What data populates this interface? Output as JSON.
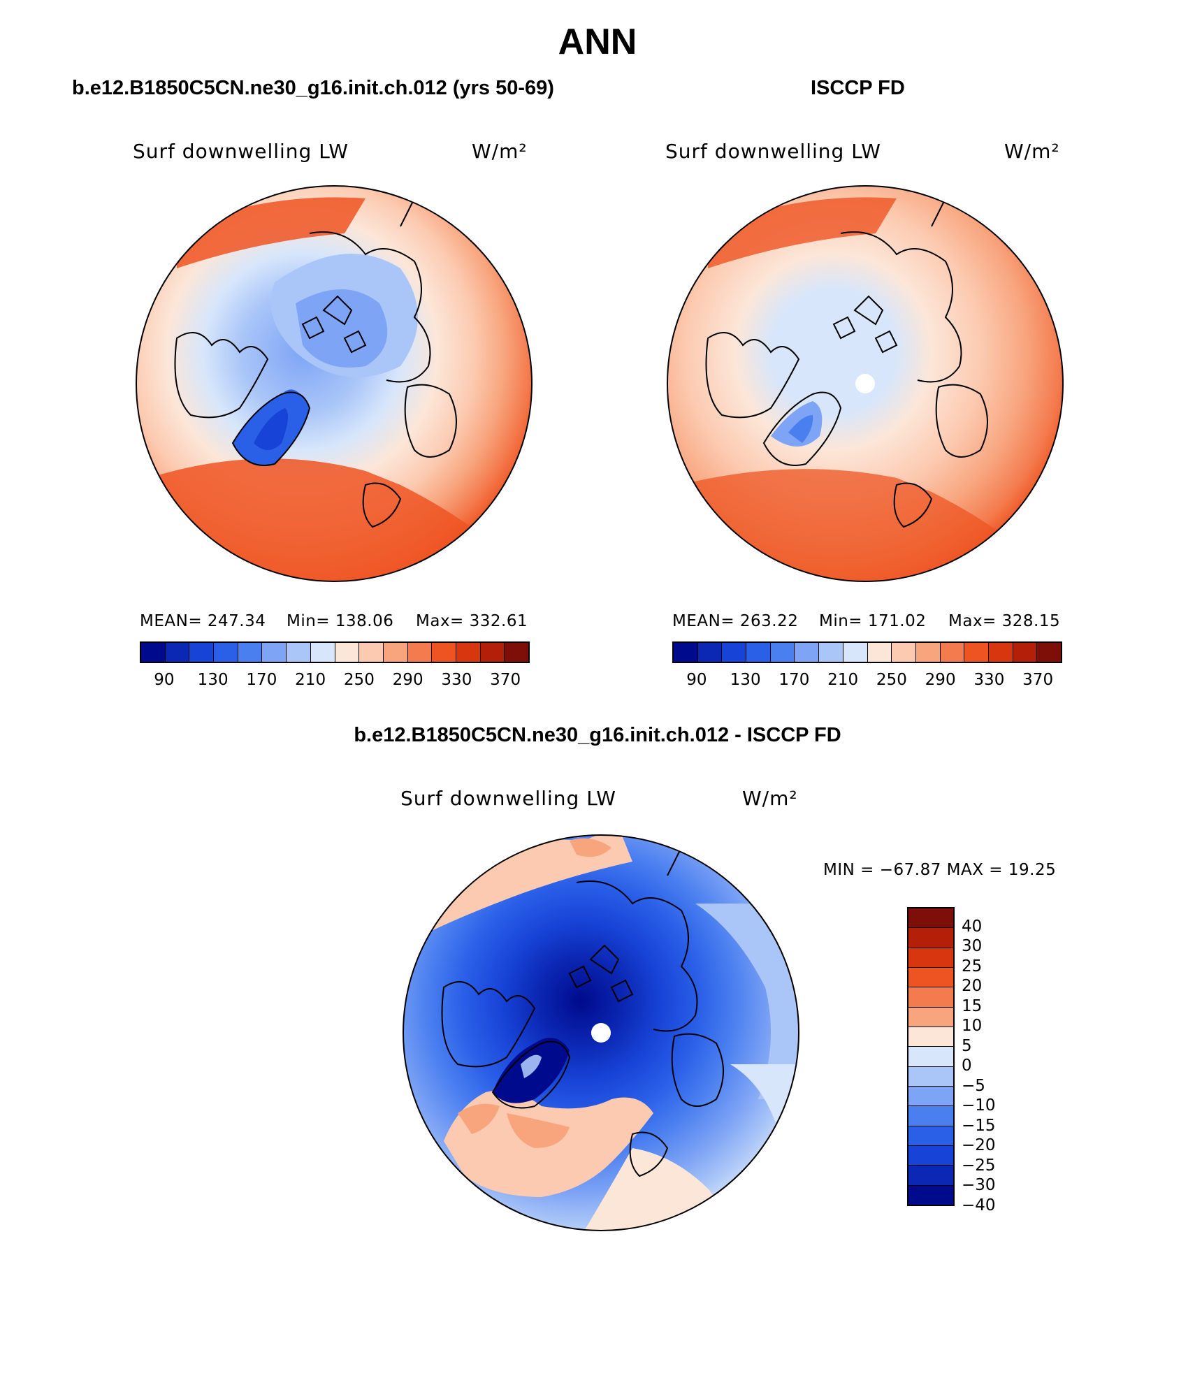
{
  "title": "ANN",
  "panels": [
    {
      "subtitle": "b.e12.B1850C5CN.ne30_g16.init.ch.012 (yrs 50-69)",
      "variable": "Surf downwelling LW",
      "units": "W/m²",
      "mean_label": "MEAN= 247.34",
      "min_label": "Min= 138.06",
      "max_label": "Max= 332.61"
    },
    {
      "subtitle": "ISCCP FD",
      "variable": "Surf downwelling LW",
      "units": "W/m²",
      "mean_label": "MEAN= 263.22",
      "min_label": "Min= 171.02",
      "max_label": "Max= 328.15"
    },
    {
      "subtitle": "b.e12.B1850C5CN.ne30_g16.init.ch.012 - ISCCP FD",
      "variable": "Surf downwelling LW",
      "units": "W/m²",
      "minmax_label": "MIN = −67.87 MAX =  19.25"
    }
  ],
  "colorbar_abs": {
    "colors": [
      "#000a8c",
      "#0b28b4",
      "#1743d6",
      "#2a5fe8",
      "#4a7ff0",
      "#7ea4f5",
      "#aac6f8",
      "#d7e6fb",
      "#fce6d8",
      "#fccab0",
      "#f8a57e",
      "#f47b4e",
      "#ee5422",
      "#d8360f",
      "#b41f0a",
      "#7e0f08"
    ],
    "ticks": [
      "90",
      "130",
      "170",
      "210",
      "250",
      "290",
      "330",
      "370"
    ]
  },
  "colorbar_diff": {
    "colors": [
      "#7e0f08",
      "#b41f0a",
      "#d8360f",
      "#ee5422",
      "#f47b4e",
      "#f8a57e",
      "#fce6d8",
      "#d7e6fb",
      "#aac6f8",
      "#7ea4f5",
      "#4a7ff0",
      "#2a5fe8",
      "#1743d6",
      "#0b28b4",
      "#000a8c"
    ],
    "ticks": [
      "40",
      "30",
      "25",
      "20",
      "15",
      "10",
      "5",
      "0",
      "−5",
      "−10",
      "−15",
      "−20",
      "−25",
      "−30",
      "−40"
    ]
  }
}
